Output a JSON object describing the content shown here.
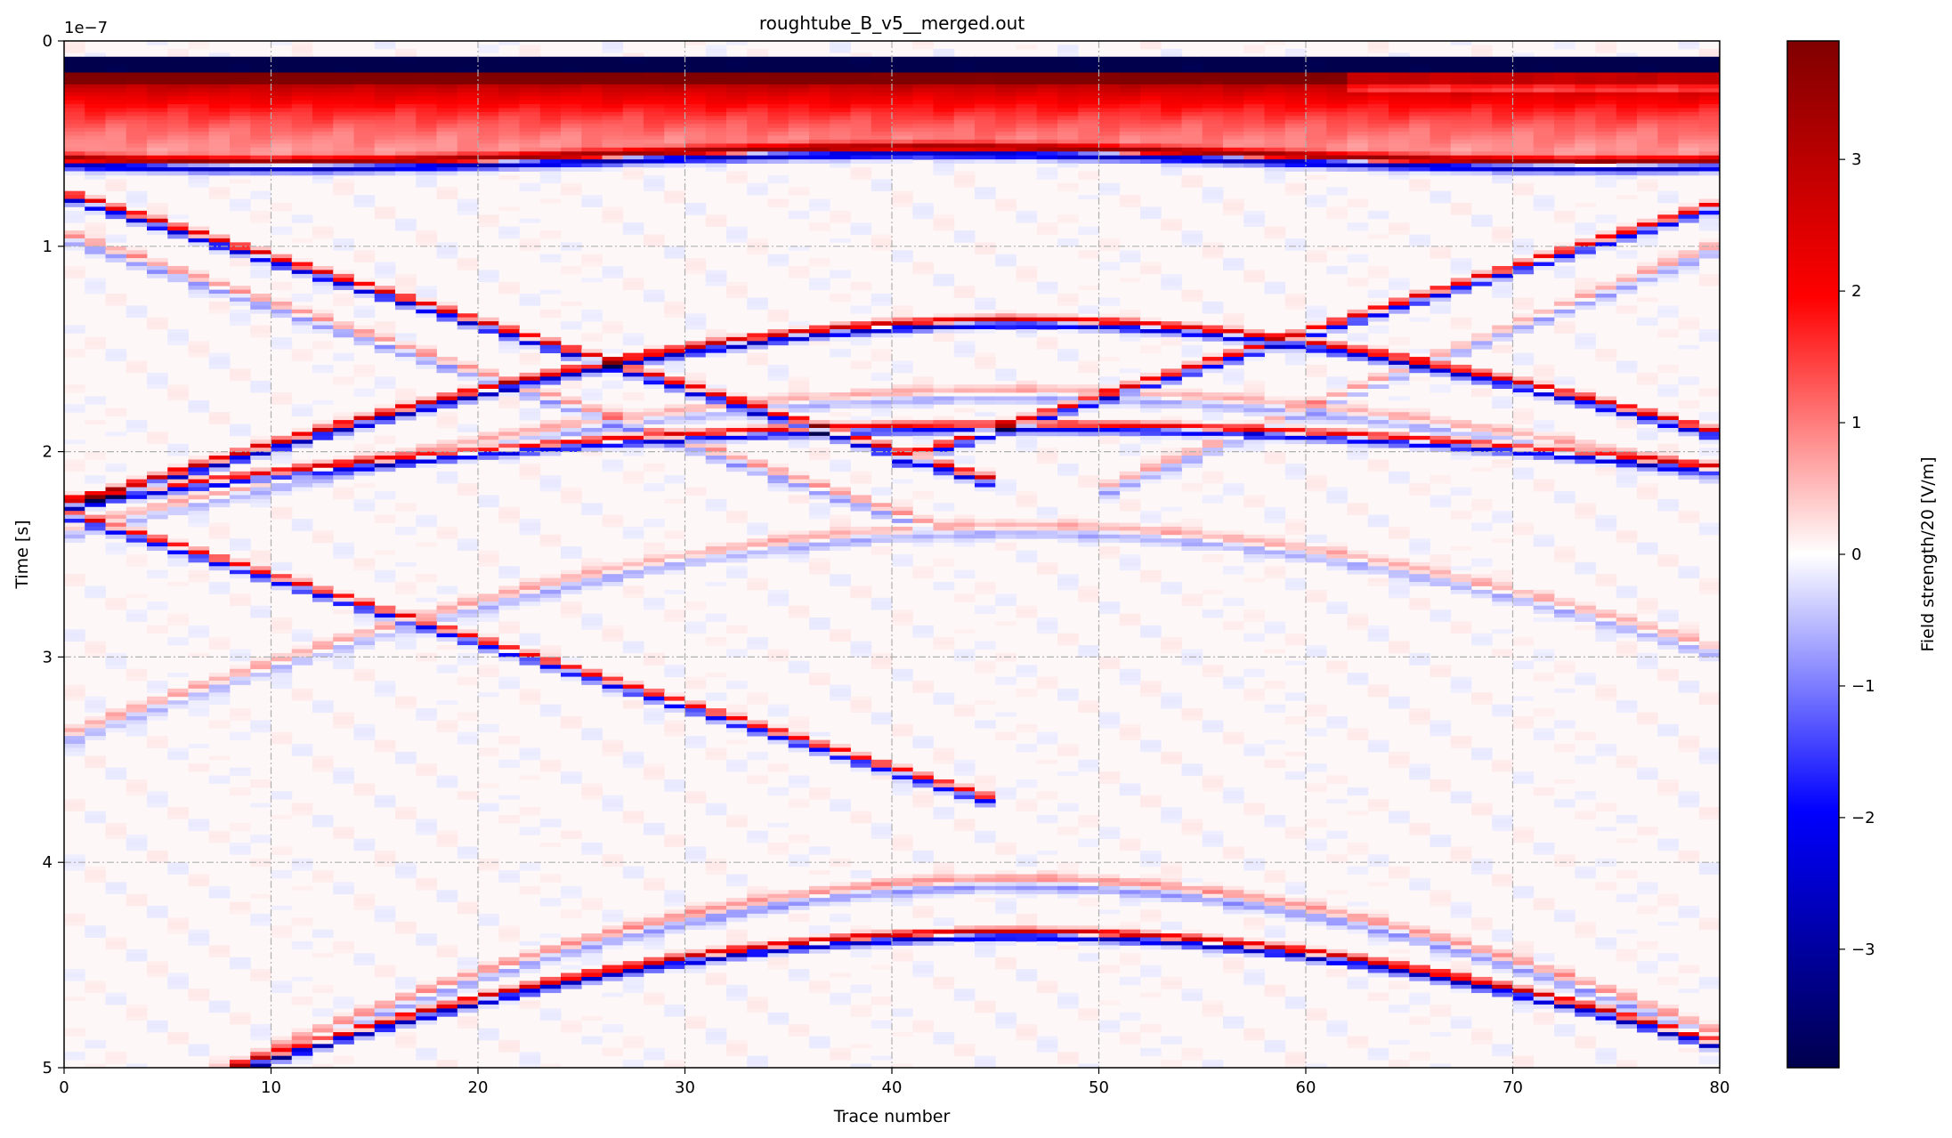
{
  "chart_data": {
    "type": "heatmap",
    "title": "roughtube_B_v5__merged.out",
    "xlabel": "Trace number",
    "ylabel": "Time [s]",
    "y_offset_label": "1e−7",
    "xlim": [
      0,
      80
    ],
    "ylim": [
      5,
      0
    ],
    "x_ticks": [
      0,
      10,
      20,
      30,
      40,
      50,
      60,
      70,
      80
    ],
    "y_ticks": [
      0,
      1,
      2,
      3,
      4,
      5
    ],
    "y_units_scale": 1e-07,
    "grid": true,
    "colorbar": {
      "label": "Field strength/20 [V/m]",
      "range": [
        -3.9,
        3.9
      ],
      "ticks": [
        -3,
        -2,
        -1,
        0,
        1,
        2,
        3
      ],
      "tick_labels": [
        "−3",
        "−2",
        "−1",
        "0",
        "1",
        "2",
        "3"
      ],
      "colormap": "seismic",
      "colors": [
        "#00004d",
        "#0000ff",
        "#ffffff",
        "#ff0000",
        "#800000"
      ]
    },
    "traces": 80,
    "reflections": [
      {
        "name": "direct wave",
        "type": "band",
        "apex_trace": 42,
        "apex_time": 0.6,
        "edge_time": 0.55
      },
      {
        "name": "left tube diffraction",
        "type": "hyperbola",
        "apex_trace": 46,
        "apex_time": 1.37,
        "edge_time_left": 2.3,
        "edge_time_right": 2.12
      },
      {
        "name": "right tube diffraction",
        "type": "hyperbola",
        "apex_trace": 46,
        "apex_time": 1.85,
        "edge_time_left": 2.3,
        "edge_time_right": 2.1
      },
      {
        "name": "edge reflection left",
        "type": "linear",
        "from": [
          0,
          0.75
        ],
        "to": [
          40,
          2.0
        ]
      },
      {
        "name": "edge reflection right",
        "type": "linear",
        "from": [
          80,
          0.8
        ],
        "to": [
          45,
          1.9
        ]
      },
      {
        "name": "deep diffraction",
        "type": "hyperbola",
        "apex_trace": 46,
        "apex_time": 4.35,
        "edge_time_left": 5.2,
        "edge_time_right": 5.2
      }
    ]
  }
}
